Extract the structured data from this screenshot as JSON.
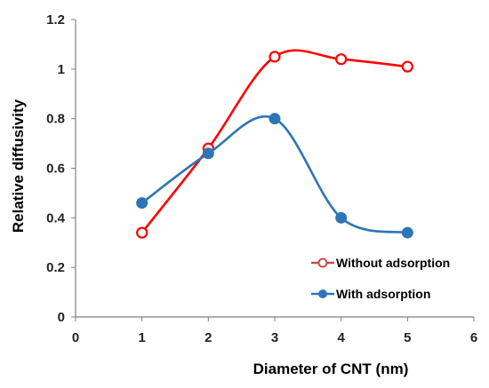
{
  "chart_data": {
    "type": "line",
    "title": "",
    "xlabel": "Diameter of CNT (nm)",
    "ylabel": "Relative diffusivity",
    "xlim": [
      0,
      6
    ],
    "ylim": [
      0,
      1.2
    ],
    "x_ticks": [
      "0",
      "1",
      "2",
      "3",
      "4",
      "5",
      "6"
    ],
    "y_ticks": [
      "0",
      "0.2",
      "0.4",
      "0.6",
      "0.8",
      "1",
      "1.2"
    ],
    "grid": false,
    "legend_position": "bottom-right",
    "series": [
      {
        "name": "Without adsorption",
        "color": "#ff0000",
        "marker": "open-circle",
        "x": [
          1,
          2,
          3,
          4,
          5
        ],
        "y": [
          0.34,
          0.68,
          1.05,
          1.04,
          1.01
        ]
      },
      {
        "name": "With adsorption",
        "color": "#2e75b6",
        "marker": "filled-circle",
        "x": [
          1,
          2,
          3,
          4,
          5
        ],
        "y": [
          0.46,
          0.66,
          0.8,
          0.4,
          0.34
        ]
      }
    ]
  }
}
